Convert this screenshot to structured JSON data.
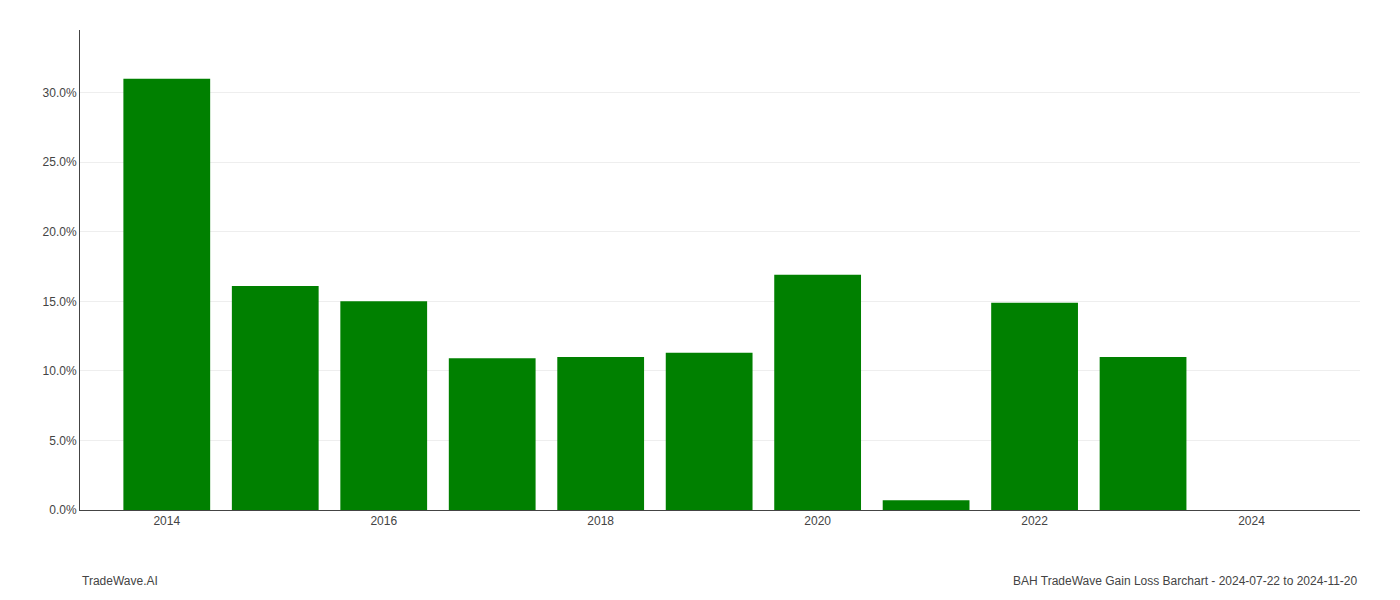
{
  "chart_data": {
    "type": "bar",
    "x": [
      2014,
      2015,
      2016,
      2017,
      2018,
      2019,
      2020,
      2021,
      2022,
      2023
    ],
    "values": [
      0.31,
      0.161,
      0.15,
      0.109,
      0.11,
      0.113,
      0.169,
      0.007,
      0.149,
      0.11
    ],
    "color": "#008000",
    "xlim": [
      2013.2,
      2025.0
    ],
    "xticks": [
      2014,
      2016,
      2018,
      2020,
      2022,
      2024
    ],
    "ylim": [
      0,
      0.345
    ],
    "yticks": [
      {
        "value": 0.0,
        "label": "0.0%"
      },
      {
        "value": 0.05,
        "label": "5.0%"
      },
      {
        "value": 0.1,
        "label": "10.0%"
      },
      {
        "value": 0.15,
        "label": "15.0%"
      },
      {
        "value": 0.2,
        "label": "20.0%"
      },
      {
        "value": 0.25,
        "label": "25.0%"
      },
      {
        "value": 0.3,
        "label": "30.0%"
      }
    ],
    "grid": true,
    "annotations": [
      "TradeWave.AI",
      "BAH TradeWave Gain Loss Barchart - 2024-07-22 to 2024-11-20"
    ]
  }
}
